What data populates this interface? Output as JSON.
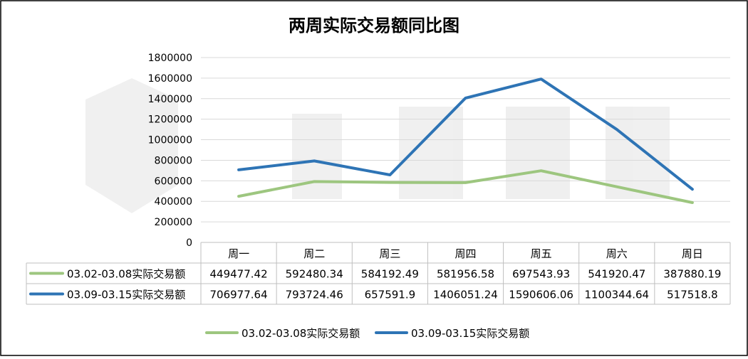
{
  "chart_data": {
    "type": "line",
    "title": "两周实际交易额同比图",
    "categories": [
      "周一",
      "周二",
      "周三",
      "周四",
      "周五",
      "周六",
      "周日"
    ],
    "ylim": [
      0,
      1800000
    ],
    "yticks": [
      "0",
      "200000",
      "400000",
      "600000",
      "800000",
      "1000000",
      "1200000",
      "1400000",
      "1600000",
      "1800000"
    ],
    "grid": true,
    "legend": "bottom",
    "data_table": true,
    "series": [
      {
        "name": "03.02-03.08实际交易额",
        "color": "#9dc67f",
        "values": [
          449477.42,
          592480.34,
          584192.49,
          581956.58,
          697543.93,
          541920.47,
          387880.19
        ],
        "labels": [
          "449477.42",
          "592480.34",
          "584192.49",
          "581956.58",
          "697543.93",
          "541920.47",
          "387880.19"
        ]
      },
      {
        "name": "03.09-03.15实际交易额",
        "color": "#2e74b5",
        "values": [
          706977.64,
          793724.46,
          657591.9,
          1406051.24,
          1590606.06,
          1100344.64,
          517518.8
        ],
        "labels": [
          "706977.64",
          "793724.46",
          "657591.9",
          "1406051.24",
          "1590606.06",
          "1100344.64",
          "517518.8"
        ]
      }
    ]
  }
}
